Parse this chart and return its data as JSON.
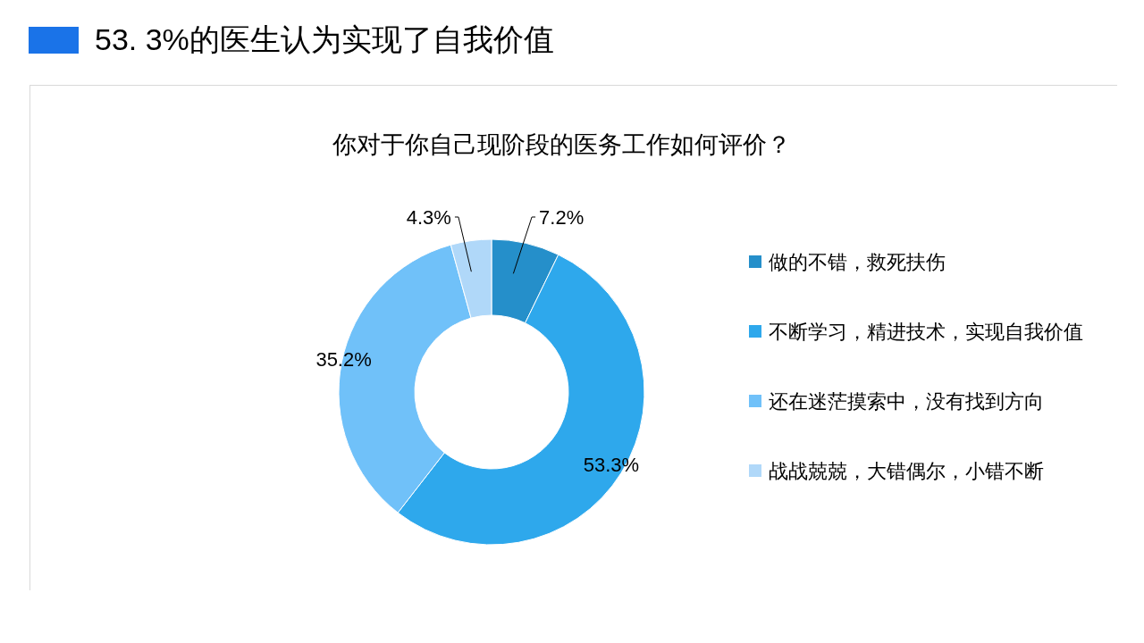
{
  "chart_data": {
    "type": "donut",
    "title": "53. 3%的医生认为实现了自我价值",
    "subtitle": "你对于你自己现阶段的医务工作如何评价？",
    "categories": [
      "做的不错，救死扶伤",
      "不断学习，精进技术，实现自我价值",
      "还在迷茫摸索中，没有找到方向",
      "战战兢兢，大错偶尔，小错不断"
    ],
    "values": [
      7.2,
      53.3,
      35.2,
      4.3
    ],
    "value_labels": [
      "7.2%",
      "53.3%",
      "35.2%",
      "4.3%"
    ],
    "colors": [
      "#258fca",
      "#2ea8ec",
      "#70c1f9",
      "#b0d8f9"
    ],
    "legend": "right"
  }
}
